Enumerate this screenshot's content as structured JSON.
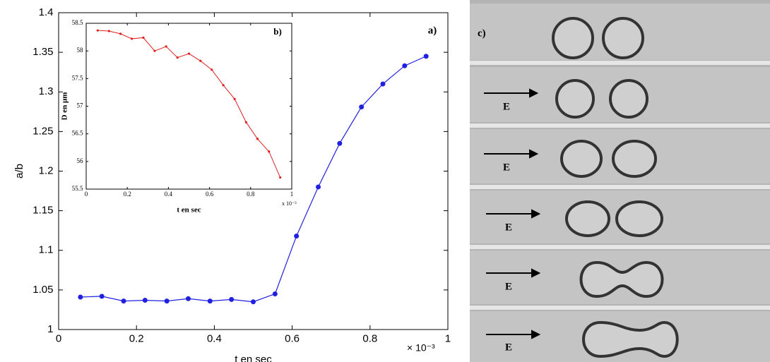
{
  "chart_data": [
    {
      "type": "line",
      "annotation": "a)",
      "xlabel": "t en sec",
      "ylabel": "a/b",
      "x_multiplier": "× 10⁻³",
      "xlim": [
        0,
        1
      ],
      "xticks": [
        0,
        0.2,
        0.4,
        0.6,
        0.8,
        1
      ],
      "ylim": [
        1,
        1.4
      ],
      "yticks": [
        1,
        1.05,
        1.1,
        1.15,
        1.2,
        1.25,
        1.3,
        1.35,
        1.4
      ],
      "grid": false,
      "x": [
        0.056,
        0.111,
        0.167,
        0.222,
        0.278,
        0.333,
        0.389,
        0.444,
        0.5,
        0.556,
        0.611,
        0.667,
        0.722,
        0.778,
        0.833,
        0.889,
        0.944
      ],
      "series": [
        {
          "color": "#2020e0",
          "values": [
            1.041,
            1.042,
            1.036,
            1.037,
            1.036,
            1.039,
            1.036,
            1.038,
            1.035,
            1.045,
            1.118,
            1.18,
            1.235,
            1.281,
            1.31,
            1.333,
            1.345
          ]
        }
      ]
    },
    {
      "type": "line",
      "annotation": "b)",
      "xlabel": "t en sec",
      "ylabel": "D en μm",
      "x_multiplier": "x 10⁻³",
      "xlim": [
        0,
        1
      ],
      "xticks": [
        0,
        0.2,
        0.4,
        0.6,
        0.8,
        1
      ],
      "ylim": [
        55.5,
        58.5
      ],
      "yticks": [
        55.5,
        56,
        56.5,
        57,
        57.5,
        58,
        58.5
      ],
      "grid": false,
      "x": [
        0.056,
        0.111,
        0.167,
        0.222,
        0.278,
        0.333,
        0.389,
        0.444,
        0.5,
        0.556,
        0.611,
        0.667,
        0.722,
        0.778,
        0.833,
        0.889,
        0.944
      ],
      "series": [
        {
          "color": "#e02020",
          "values": [
            58.37,
            58.36,
            58.31,
            58.22,
            58.24,
            58.0,
            58.08,
            57.88,
            57.95,
            57.82,
            57.66,
            57.38,
            57.13,
            56.71,
            56.41,
            56.18,
            55.71
          ]
        }
      ]
    }
  ],
  "photo_panel": {
    "label": "c)",
    "field_labels": [
      "E",
      "E",
      "E",
      "E",
      "E"
    ]
  }
}
